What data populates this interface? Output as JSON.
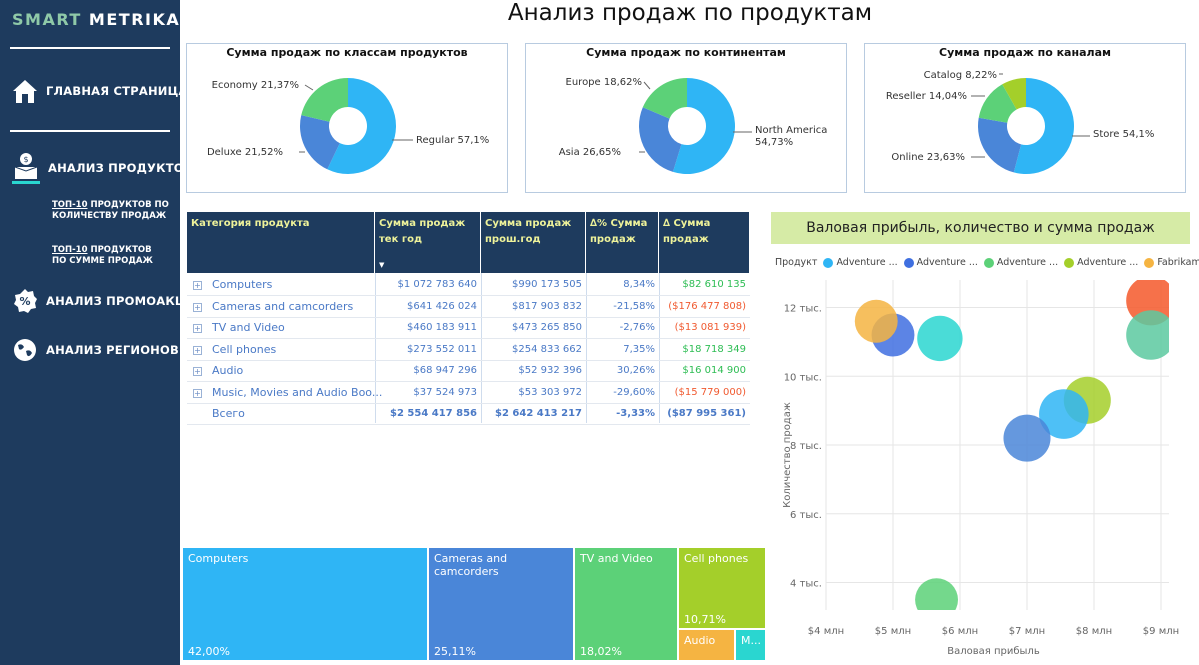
{
  "sidebar": {
    "logo_part1": "SMART",
    "logo_part2": "METRIKA",
    "home": "ГЛАВНАЯ СТРАНИЦА",
    "products": "АНАЛИЗ ПРОДУКТОВ",
    "sub1_prefix": "ТОП-10",
    "sub1_rest": " ПРОДУКТОВ ПО",
    "sub1_line2": "КОЛИЧЕСТВУ ПРОДАЖ",
    "sub2_prefix": "ТОП-10",
    "sub2_rest": " ПРОДУКТОВ",
    "sub2_line2": "ПО СУММЕ ПРОДАЖ",
    "promo": "АНАЛИЗ ПРОМОАКЦИЙ",
    "regions": "АНАЛИЗ РЕГИОНОВ"
  },
  "page_title": "Анализ продаж по продуктам",
  "colors": {
    "blue": "#2fb5f5",
    "dblue": "#4a86d8",
    "green": "#5cd178",
    "lime": "#a4cf2a",
    "orange": "#f5b442",
    "teal": "#2ad6d0",
    "red": "#f5582a",
    "sidebar": "#1e3b5e"
  },
  "chart_data": [
    {
      "type": "pie",
      "title": "Сумма продаж по классам продуктов",
      "slices": [
        {
          "label": "Regular 57,1%",
          "value": 57.1,
          "color": "#2fb5f5"
        },
        {
          "label": "Deluxe 21,52%",
          "value": 21.52,
          "color": "#4a86d8"
        },
        {
          "label": "Economy 21,37%",
          "value": 21.37,
          "color": "#5cd178"
        }
      ]
    },
    {
      "type": "pie",
      "title": "Сумма продаж по континентам",
      "slices": [
        {
          "label": "North America",
          "label2": "54,73%",
          "value": 54.73,
          "color": "#2fb5f5"
        },
        {
          "label": "Asia 26,65%",
          "value": 26.65,
          "color": "#4a86d8"
        },
        {
          "label": "Europe 18,62%",
          "value": 18.62,
          "color": "#5cd178"
        }
      ]
    },
    {
      "type": "pie",
      "title": "Сумма продаж по каналам",
      "slices": [
        {
          "label": "Store 54,1%",
          "value": 54.1,
          "color": "#2fb5f5"
        },
        {
          "label": "Online 23,63%",
          "value": 23.63,
          "color": "#4a86d8"
        },
        {
          "label": "Reseller 14,04%",
          "value": 14.04,
          "color": "#5cd178"
        },
        {
          "label": "Catalog 8,22%",
          "value": 8.22,
          "color": "#a4cf2a"
        }
      ]
    },
    {
      "type": "table",
      "headers": [
        "Категория продукта",
        "Сумма продаж тек год",
        "Сумма продаж прош.год",
        "∆% Сумма продаж",
        "∆ Сумма продаж"
      ],
      "rows": [
        [
          "Computers",
          "$1 072 783 640",
          "$990 173 505",
          "8,34%",
          "$82 610 135"
        ],
        [
          "Cameras and camcorders",
          "$641 426 024",
          "$817 903 832",
          "-21,58%",
          "($176 477 808)"
        ],
        [
          "TV and Video",
          "$460 183 911",
          "$473 265 850",
          "-2,76%",
          "($13 081 939)"
        ],
        [
          "Cell phones",
          "$273 552 011",
          "$254 833 662",
          "7,35%",
          "$18 718 349"
        ],
        [
          "Audio",
          "$68 947 296",
          "$52 932 396",
          "30,26%",
          "$16 014 900"
        ],
        [
          "Music, Movies and Audio Boo...",
          "$37 524 973",
          "$53 303 972",
          "-29,60%",
          "($15 779 000)"
        ]
      ],
      "total": [
        "Всего",
        "$2 554 417 856",
        "$2 642 413 217",
        "-3,33%",
        "($87 995 361)"
      ]
    },
    {
      "type": "table",
      "subtype": "treemap",
      "items": [
        {
          "label": "Computers",
          "value": "42,00%",
          "color": "#2fb5f5"
        },
        {
          "label": "Cameras and camcorders",
          "value": "25,11%",
          "color": "#4a86d8"
        },
        {
          "label": "TV and Video",
          "value": "18,02%",
          "color": "#5cd178"
        },
        {
          "label": "Cell phones",
          "value": "10,71%",
          "color": "#a4cf2a"
        },
        {
          "label": "Audio",
          "value": "",
          "color": "#f5b442"
        },
        {
          "label": "M...",
          "value": "",
          "color": "#2ad6d0"
        }
      ]
    },
    {
      "type": "scatter",
      "title": "Валовая прибыль, количество и сумма продаж",
      "xlabel": "Валовая прибыль",
      "ylabel": "Количество продаж",
      "legend_title": "Продукт",
      "legend": [
        {
          "name": "Adventure ...",
          "color": "#2fb5f5"
        },
        {
          "name": "Adventure ...",
          "color": "#3f6fe0"
        },
        {
          "name": "Adventure ...",
          "color": "#5cd178"
        },
        {
          "name": "Adventure ...",
          "color": "#a4cf2a"
        },
        {
          "name": "Fabrikam L...",
          "color": "#f5b442"
        }
      ],
      "xticks": [
        "$4 млн",
        "$5 млн",
        "$6 млн",
        "$7 млн",
        "$8 млн",
        "$9 млн"
      ],
      "yticks": [
        "4 тыс.",
        "6 тыс.",
        "8 тыс.",
        "10 тыс.",
        "12 тыс."
      ],
      "xlim": [
        4,
        9
      ],
      "ylim": [
        3.2,
        12.8
      ],
      "points": [
        {
          "x": 5.0,
          "y": 11.2,
          "r": 0.42,
          "color": "#3f6fe0"
        },
        {
          "x": 4.75,
          "y": 11.6,
          "r": 0.42,
          "color": "#f5b442"
        },
        {
          "x": 5.7,
          "y": 11.1,
          "r": 0.45,
          "color": "#2ad6d0"
        },
        {
          "x": 8.85,
          "y": 12.2,
          "r": 0.5,
          "color": "#f5582a"
        },
        {
          "x": 8.85,
          "y": 11.2,
          "r": 0.5,
          "color": "#5cc9a0"
        },
        {
          "x": 7.9,
          "y": 9.3,
          "r": 0.47,
          "color": "#a4cf2a"
        },
        {
          "x": 7.55,
          "y": 8.9,
          "r": 0.5,
          "color": "#2fb5f5"
        },
        {
          "x": 7.0,
          "y": 8.2,
          "r": 0.47,
          "color": "#4a86d8"
        },
        {
          "x": 5.65,
          "y": 3.5,
          "r": 0.42,
          "color": "#5cd178"
        }
      ]
    }
  ]
}
